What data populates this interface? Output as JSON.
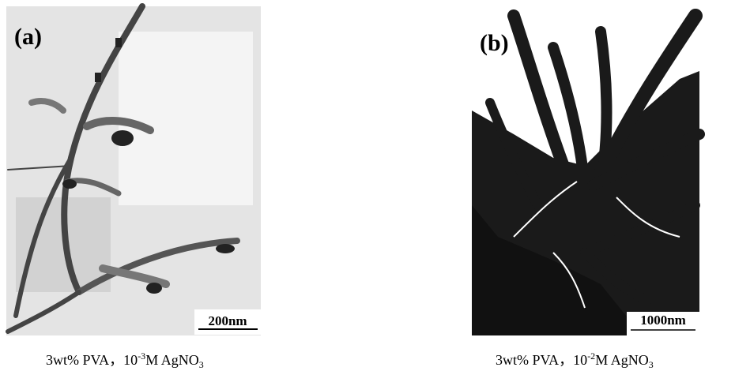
{
  "panels": [
    {
      "label": "(a)",
      "scale_bar": "200nm",
      "caption": {
        "text": "3wt% PVA，10",
        "sup": "-3",
        "mid": "M AgNO",
        "sub": "3"
      }
    },
    {
      "label": "(b)",
      "scale_bar": "1000nm",
      "caption": {
        "text": "3wt% PVA，10",
        "sup": "-2",
        "mid": "M AgNO",
        "sub": "3"
      }
    }
  ]
}
